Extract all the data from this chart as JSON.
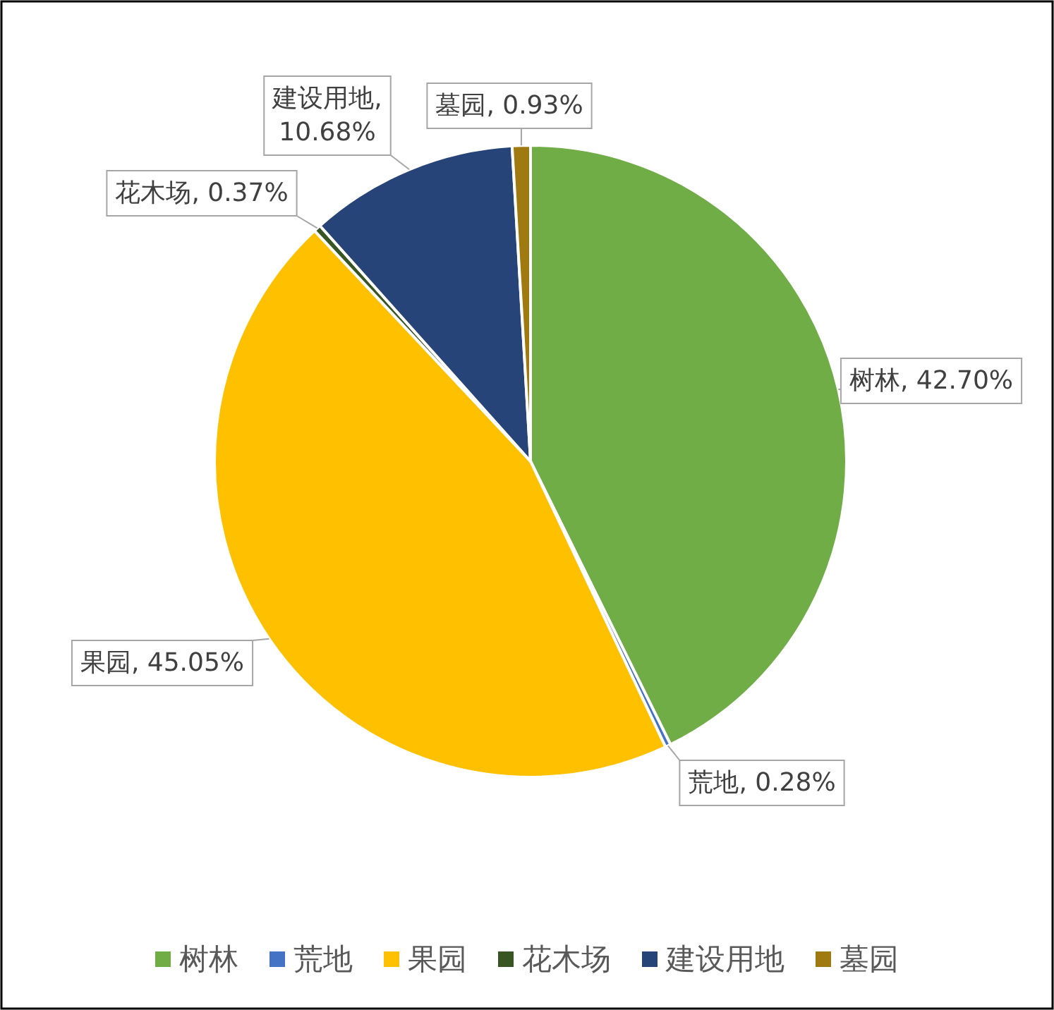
{
  "chart_data": {
    "type": "pie",
    "categories": [
      "树林",
      "荒地",
      "果园",
      "花木场",
      "建设用地",
      "墓园"
    ],
    "values": [
      42.7,
      0.28,
      45.05,
      0.37,
      10.68,
      0.93
    ],
    "value_labels": [
      "树林, 42.70%",
      "荒地, 0.28%",
      "果园, 45.05%",
      "花木场, 0.37%",
      "建设用地, 10.68%",
      "墓园, 0.93%"
    ],
    "colors": [
      "#70ad47",
      "#4472c4",
      "#ffc000",
      "#375623",
      "#264478",
      "#9e7a10"
    ],
    "legend": "bottom"
  }
}
